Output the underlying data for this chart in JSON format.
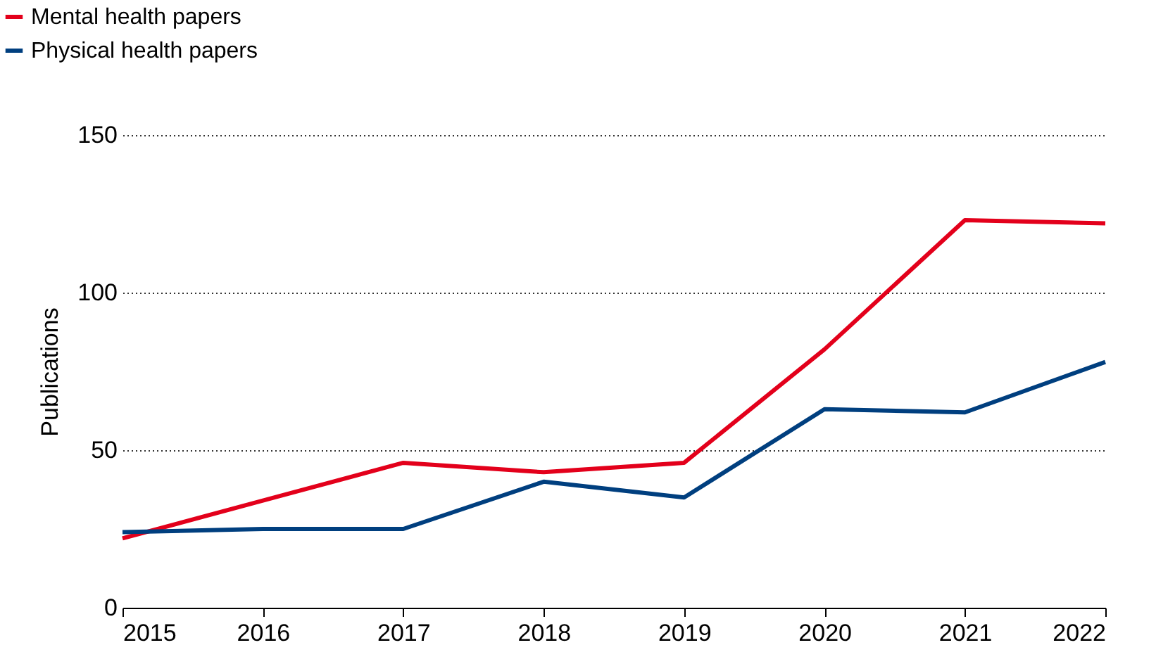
{
  "chart_data": {
    "type": "line",
    "ylabel": "Publications",
    "categories": [
      "2015",
      "2016",
      "2017",
      "2018",
      "2019",
      "2020",
      "2021",
      "2022"
    ],
    "series": [
      {
        "name": "Mental health papers",
        "color": "#e3001b",
        "values": [
          22,
          34,
          46,
          43,
          46,
          82,
          123,
          122
        ]
      },
      {
        "name": "Physical health papers",
        "color": "#003f7f",
        "values": [
          24,
          25,
          25,
          40,
          35,
          63,
          62,
          78
        ]
      }
    ],
    "ylim": [
      0,
      150
    ],
    "yticks": [
      0,
      50,
      100,
      150
    ],
    "grid": "y",
    "legend": "top left",
    "line_style": "solid",
    "marker": "none"
  }
}
